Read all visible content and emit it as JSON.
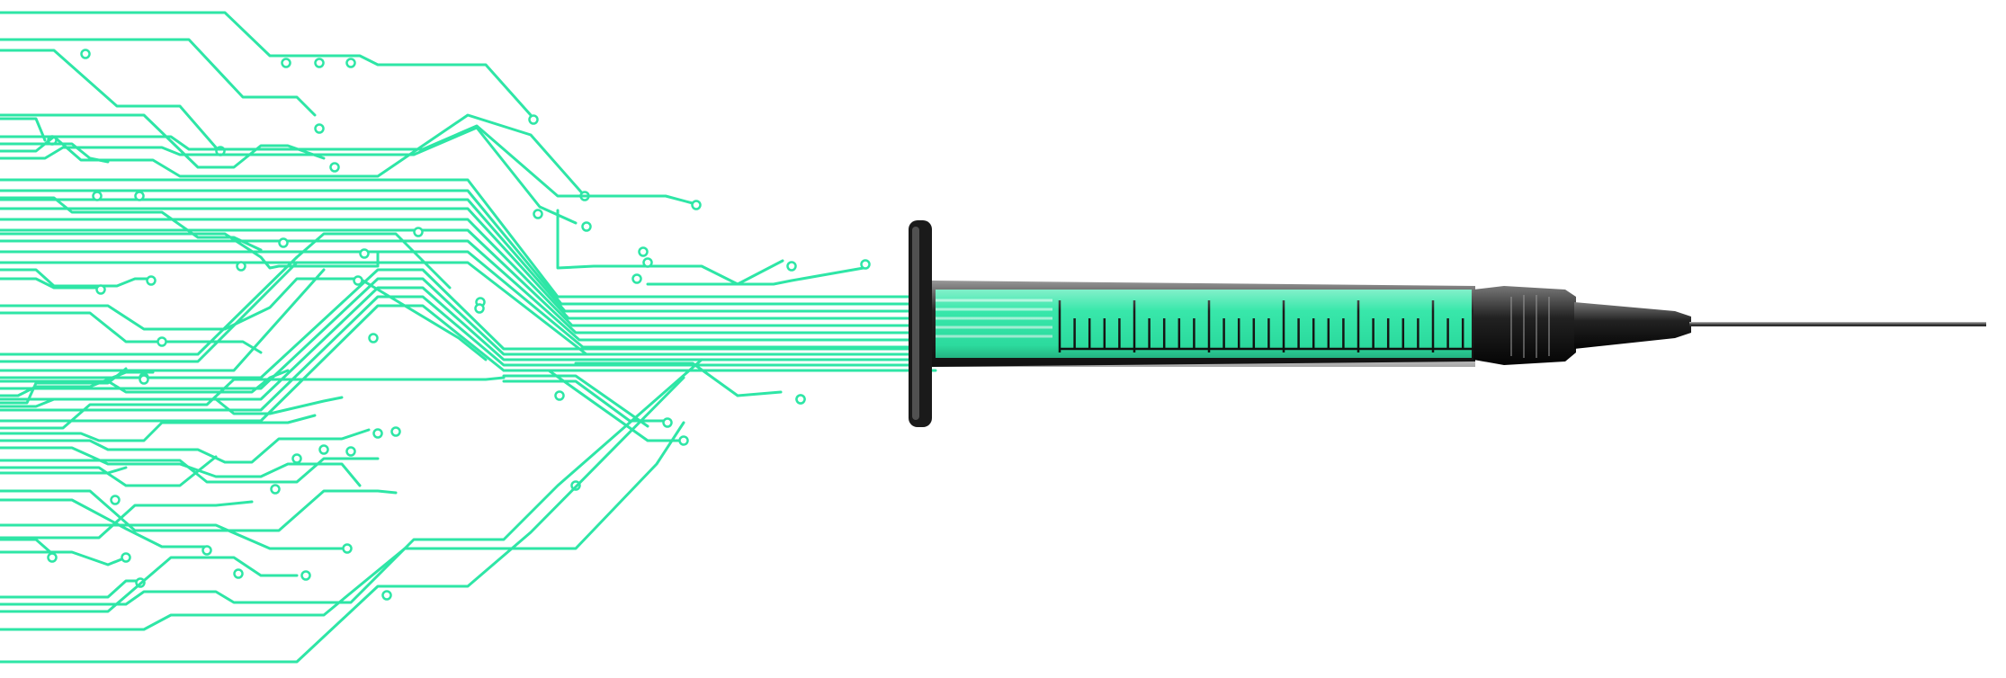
{
  "illustration": {
    "circuit_color": "#2ee6a6",
    "barrel_fill_color": "#2ee6a6",
    "syringe_body_color": "#111111",
    "needle_color": "#555555",
    "background_color": "#ffffff"
  },
  "icons": [
    "circuit-traces-icon",
    "syringe-icon",
    "needle-icon"
  ]
}
